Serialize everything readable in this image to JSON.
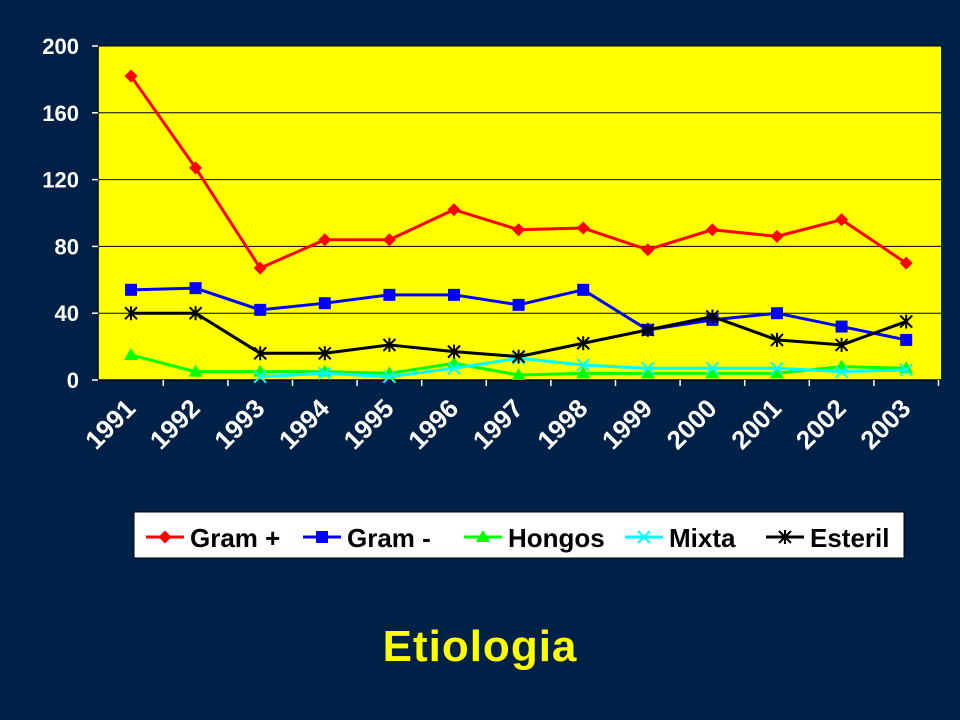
{
  "slide": {
    "title": "Etiologia"
  },
  "chart_data": {
    "type": "line",
    "categories": [
      "1991",
      "1992",
      "1993",
      "1994",
      "1995",
      "1996",
      "1997",
      "1998",
      "1999",
      "2000",
      "2001",
      "2002",
      "2003"
    ],
    "ylim": [
      0,
      200
    ],
    "yticks": [
      0,
      40,
      80,
      120,
      160,
      200
    ],
    "grid": "horizontal",
    "plot_background": "#ffff00",
    "legend_position": "bottom",
    "series": [
      {
        "name": "Gram +",
        "color": "#ff0000",
        "marker": "diamond",
        "values": [
          182,
          127,
          67,
          84,
          84,
          102,
          90,
          91,
          78,
          90,
          86,
          96,
          70
        ]
      },
      {
        "name": "Gram -",
        "color": "#0000ff",
        "marker": "square",
        "values": [
          54,
          55,
          42,
          46,
          51,
          51,
          45,
          54,
          30,
          36,
          40,
          32,
          24
        ]
      },
      {
        "name": "Hongos",
        "color": "#00ff00",
        "marker": "triangle",
        "values": [
          15,
          5,
          5,
          5,
          4,
          10,
          3,
          4,
          4,
          4,
          4,
          8,
          7
        ]
      },
      {
        "name": "Mixta",
        "color": "#00ffff",
        "marker": "x",
        "values": [
          null,
          null,
          2,
          4,
          2,
          7,
          13,
          9,
          7,
          7,
          7,
          5,
          6
        ]
      },
      {
        "name": "Esteril",
        "color": "#000000",
        "marker": "star",
        "values": [
          40,
          40,
          16,
          16,
          21,
          17,
          14,
          22,
          30,
          38,
          24,
          21,
          35
        ]
      }
    ]
  }
}
